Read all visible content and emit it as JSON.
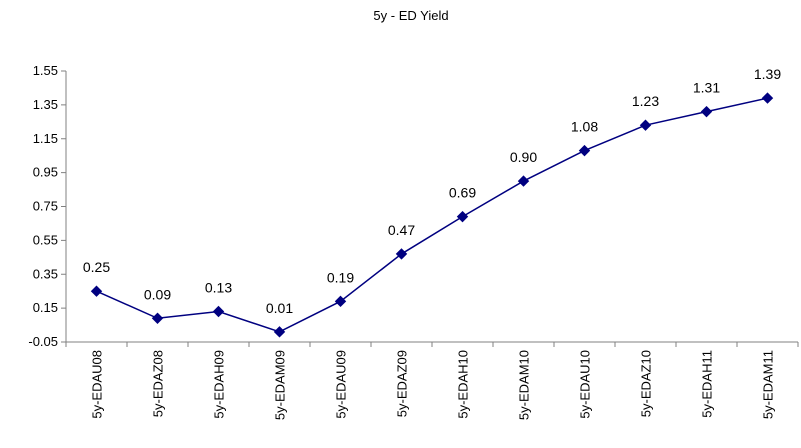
{
  "chart_data": {
    "type": "line",
    "title": "5y - ED Yield",
    "xlabel": "",
    "ylabel": "",
    "categories": [
      "5y-EDAU08",
      "5y-EDAZ08",
      "5y-EDAH09",
      "5y-EDAM09",
      "5y-EDAU09",
      "5y-EDAZ09",
      "5y-EDAH10",
      "5y-EDAM10",
      "5y-EDAU10",
      "5y-EDAZ10",
      "5y-EDAH11",
      "5y-EDAM11"
    ],
    "values": [
      0.25,
      0.09,
      0.13,
      0.01,
      0.19,
      0.47,
      0.69,
      0.9,
      1.08,
      1.23,
      1.31,
      1.39
    ],
    "data_labels": [
      "0.25",
      "0.09",
      "0.13",
      "0.01",
      "0.19",
      "0.47",
      "0.69",
      "0.90",
      "1.08",
      "1.23",
      "1.31",
      "1.39"
    ],
    "yticks": [
      "1.55",
      "1.35",
      "1.15",
      "0.95",
      "0.75",
      "0.55",
      "0.35",
      "0.15",
      "-0.05"
    ],
    "ylim": [
      -0.05,
      1.55
    ],
    "grid": false,
    "legend": "none",
    "colors": {
      "line": "#000080",
      "marker": "#000080",
      "axis": "#808080",
      "text": "#000000"
    }
  }
}
